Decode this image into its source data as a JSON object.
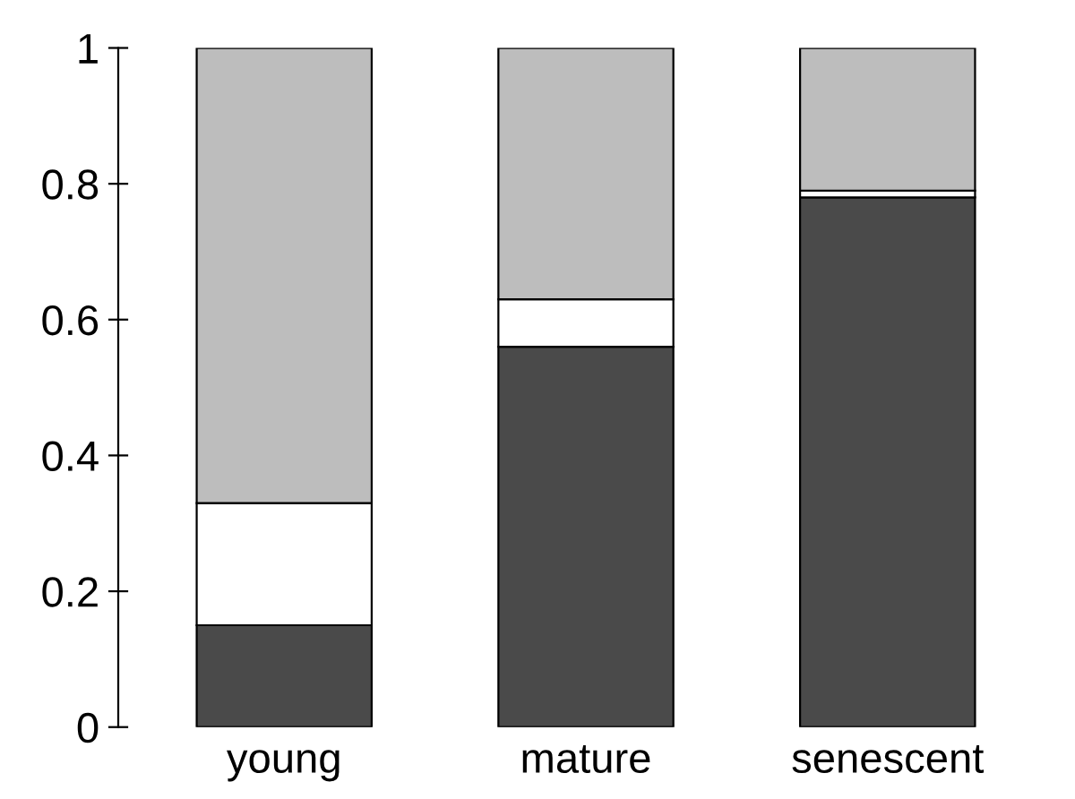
{
  "chart_data": {
    "type": "bar",
    "stacked": true,
    "categories": [
      "young",
      "mature",
      "senescent"
    ],
    "series": [
      {
        "color": "#4a4a4a",
        "values": [
          0.15,
          0.56,
          0.78
        ]
      },
      {
        "color": "#ffffff",
        "values": [
          0.18,
          0.07,
          0.01
        ]
      },
      {
        "color": "#bdbdbd",
        "values": [
          0.67,
          0.37,
          0.21
        ]
      }
    ],
    "ylim": [
      0,
      1
    ],
    "yticks": [
      0,
      0.2,
      0.4,
      0.6,
      0.8,
      1
    ]
  }
}
